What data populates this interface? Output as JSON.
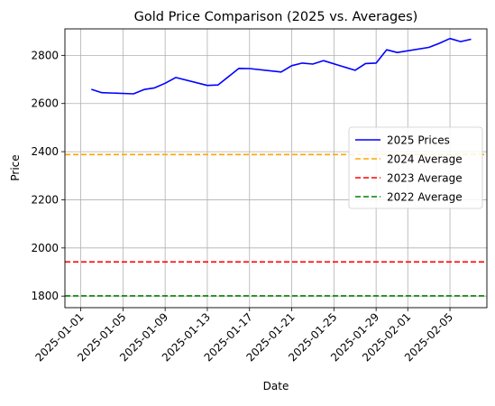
{
  "chart_data": {
    "type": "line",
    "title": "Gold Price Comparison (2025 vs. Averages)",
    "xlabel": "Date",
    "ylabel": "Price",
    "xlim": [
      "2024-12-30T12:00",
      "2025-02-08T12:00"
    ],
    "ylim": [
      1752,
      2910
    ],
    "grid": true,
    "legend_position": "center-right",
    "x_ticks": [
      "2025-01-01",
      "2025-01-05",
      "2025-01-09",
      "2025-01-13",
      "2025-01-17",
      "2025-01-21",
      "2025-01-25",
      "2025-01-29",
      "2025-02-01",
      "2025-02-05"
    ],
    "y_ticks": [
      1800,
      2000,
      2200,
      2400,
      2600,
      2800
    ],
    "series": [
      {
        "name": "2025 Prices",
        "color": "#0000ff",
        "style": "solid",
        "x": [
          "2025-01-02",
          "2025-01-03",
          "2025-01-06",
          "2025-01-07",
          "2025-01-08",
          "2025-01-09",
          "2025-01-10",
          "2025-01-13",
          "2025-01-14",
          "2025-01-16",
          "2025-01-17",
          "2025-01-20",
          "2025-01-21",
          "2025-01-22",
          "2025-01-23",
          "2025-01-24",
          "2025-01-27",
          "2025-01-28",
          "2025-01-29",
          "2025-01-30",
          "2025-01-31",
          "2025-02-03",
          "2025-02-04",
          "2025-02-05",
          "2025-02-06",
          "2025-02-07"
        ],
        "y": [
          2659,
          2645,
          2640,
          2658,
          2665,
          2684,
          2708,
          2675,
          2677,
          2746,
          2745,
          2731,
          2757,
          2768,
          2764,
          2778,
          2738,
          2766,
          2768,
          2823,
          2812,
          2833,
          2850,
          2870,
          2857,
          2867
        ]
      },
      {
        "name": "2024 Average",
        "color": "#ffa500",
        "style": "dashed",
        "y": 2388
      },
      {
        "name": "2023 Average",
        "color": "#ff0000",
        "style": "dashed",
        "y": 1942
      },
      {
        "name": "2022 Average",
        "color": "#008000",
        "style": "dashed",
        "y": 1801
      }
    ]
  }
}
